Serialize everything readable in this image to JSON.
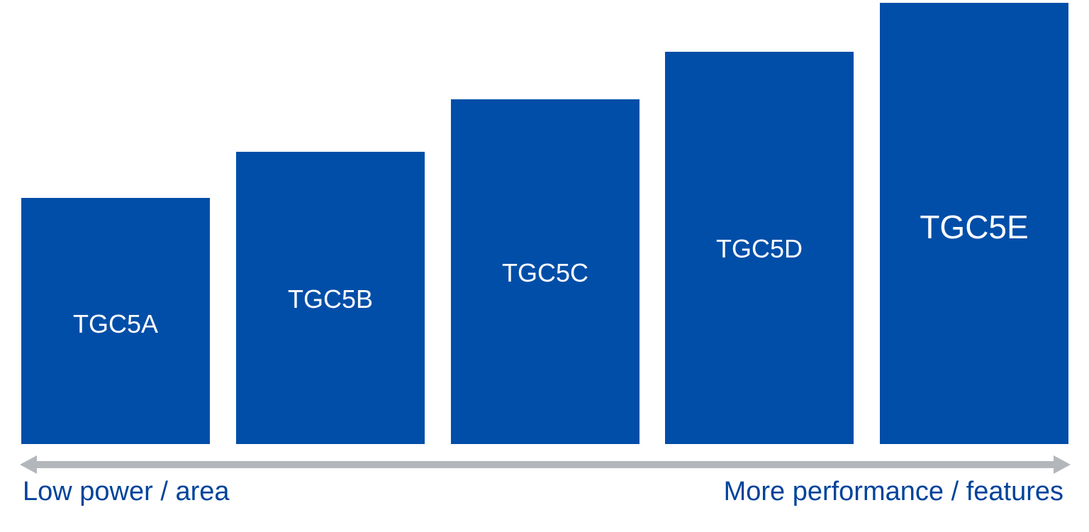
{
  "colors": {
    "block_fill": "#004ea8",
    "block_text": "#ffffff",
    "arrow": "#b3b7bc",
    "axis_text": "#00439b"
  },
  "tiers": [
    {
      "label": "TGC5A",
      "level": 1
    },
    {
      "label": "TGC5B",
      "level": 2
    },
    {
      "label": "TGC5C",
      "level": 3
    },
    {
      "label": "TGC5D",
      "level": 4
    },
    {
      "label": "TGC5E",
      "level": 5
    }
  ],
  "axis": {
    "left_label": "Low power / area",
    "right_label": "More performance /  features"
  }
}
